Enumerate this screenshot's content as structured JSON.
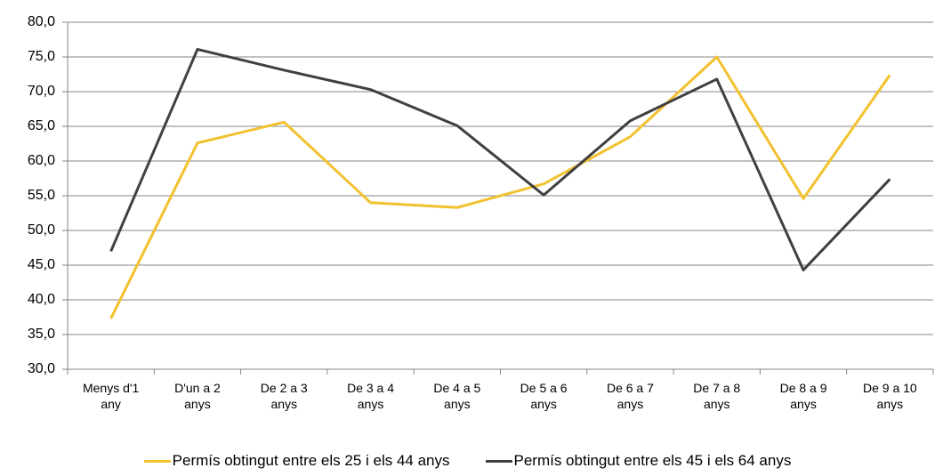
{
  "chart_data": {
    "type": "line",
    "categories": [
      "Menys d'1 any",
      "D'un a 2 anys",
      "De 2 a 3 anys",
      "De 3 a 4 anys",
      "De 4 a 5 anys",
      "De 5 a 6 anys",
      "De 6 a 7 anys",
      "De 7 a 8 anys",
      "De 8 a 9 anys",
      "De 9 a 10 anys"
    ],
    "series": [
      {
        "name": "Permís obtingut entre els 25 i els 44 anys",
        "color": "#f2c12e",
        "values": [
          37.3,
          62.6,
          65.6,
          54.0,
          53.3,
          56.7,
          63.5,
          75.0,
          54.6,
          72.4
        ]
      },
      {
        "name": "Permís obtingut entre els 45 i els 64 anys",
        "color": "#404040",
        "values": [
          47.0,
          76.1,
          73.1,
          70.3,
          65.1,
          55.1,
          65.8,
          71.8,
          44.3,
          57.4
        ]
      }
    ],
    "ylim": [
      30,
      80
    ],
    "yticks": [
      {
        "value": 30,
        "label": "30,0"
      },
      {
        "value": 35,
        "label": "35,0"
      },
      {
        "value": 40,
        "label": "40,0"
      },
      {
        "value": 45,
        "label": "45,0"
      },
      {
        "value": 50,
        "label": "50,0"
      },
      {
        "value": 55,
        "label": "55,0"
      },
      {
        "value": 60,
        "label": "60,0"
      },
      {
        "value": 65,
        "label": "65,0"
      },
      {
        "value": 70,
        "label": "70,0"
      },
      {
        "value": 75,
        "label": "75,0"
      },
      {
        "value": 80,
        "label": "80,0"
      }
    ],
    "grid": true,
    "legend": "bottom"
  }
}
